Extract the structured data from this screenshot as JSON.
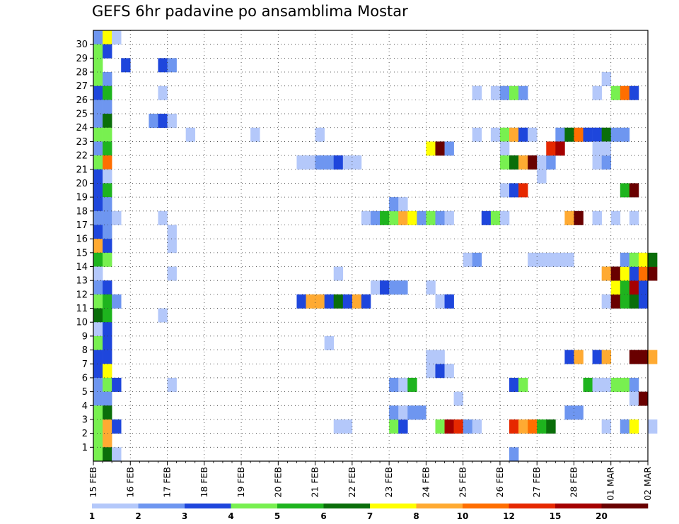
{
  "chart_data": {
    "type": "heatmap",
    "title": "GEFS 6hr padavine po ansamblima Mostar",
    "y_ticks": [
      "1",
      "2",
      "3",
      "4",
      "5",
      "6",
      "7",
      "8",
      "9",
      "10",
      "11",
      "12",
      "13",
      "14",
      "15",
      "16",
      "17",
      "18",
      "19",
      "20",
      "21",
      "22",
      "23",
      "24",
      "25",
      "26",
      "27",
      "28",
      "29",
      "30"
    ],
    "x_ticks": [
      "15 FEB",
      "16 FEB",
      "17 FEB",
      "18 FEB",
      "19 FEB",
      "20 FEB",
      "21 FEB",
      "22 FEB",
      "23 FEB",
      "24 FEB",
      "25 FEB",
      "26 FEB",
      "27 FEB",
      "28 FEB",
      "01 MAR",
      "02 MAR"
    ],
    "x_unit": "6-hour steps from 15 FEB 00 UTC",
    "y_unit": "ensemble member",
    "colorbar": {
      "labels": [
        "1",
        "2",
        "3",
        "4",
        "5",
        "6",
        "7",
        "8",
        "10",
        "12",
        "15",
        "20"
      ],
      "colors": [
        "#b4c8fa",
        "#6e96f0",
        "#1e46dc",
        "#78f050",
        "#1eb41e",
        "#0a6e0a",
        "#ffff00",
        "#ffaa32",
        "#ff6e00",
        "#e62800",
        "#a50000",
        "#690000"
      ]
    },
    "color_levels": [
      "1-2",
      "2-3",
      "3-4",
      "4-5",
      "5-6",
      "6-7",
      "7-8",
      "8-10",
      "10-12",
      "12-15",
      "15-20",
      ">20"
    ],
    "cells": [
      [
        0,
        30,
        1
      ],
      [
        1,
        30,
        6
      ],
      [
        2,
        30,
        0
      ],
      [
        0,
        29,
        3
      ],
      [
        1,
        29,
        2
      ],
      [
        0,
        28,
        3
      ],
      [
        3,
        28,
        2
      ],
      [
        0,
        27,
        3
      ],
      [
        1,
        27,
        1
      ],
      [
        0,
        26,
        2
      ],
      [
        1,
        26,
        4
      ],
      [
        0,
        25,
        1
      ],
      [
        1,
        25,
        1
      ],
      [
        0,
        24,
        1
      ],
      [
        1,
        24,
        5
      ],
      [
        0,
        23,
        3
      ],
      [
        1,
        23,
        3
      ],
      [
        0,
        22,
        1
      ],
      [
        1,
        22,
        4
      ],
      [
        0,
        21,
        3
      ],
      [
        1,
        21,
        8
      ],
      [
        0,
        20,
        2
      ],
      [
        1,
        20,
        0
      ],
      [
        0,
        19,
        2
      ],
      [
        1,
        19,
        4
      ],
      [
        0,
        18,
        2
      ],
      [
        1,
        18,
        1
      ],
      [
        0,
        17,
        1
      ],
      [
        1,
        17,
        1
      ],
      [
        2,
        17,
        0
      ],
      [
        0,
        16,
        2
      ],
      [
        1,
        16,
        1
      ],
      [
        0,
        15,
        7
      ],
      [
        1,
        15,
        2
      ],
      [
        0,
        14,
        4
      ],
      [
        1,
        14,
        3
      ],
      [
        0,
        13,
        0
      ],
      [
        0,
        12,
        1
      ],
      [
        1,
        12,
        2
      ],
      [
        0,
        11,
        3
      ],
      [
        1,
        11,
        4
      ],
      [
        2,
        11,
        1
      ],
      [
        0,
        10,
        5
      ],
      [
        1,
        10,
        4
      ],
      [
        0,
        9,
        0
      ],
      [
        1,
        9,
        2
      ],
      [
        0,
        8,
        3
      ],
      [
        1,
        8,
        2
      ],
      [
        0,
        7,
        2
      ],
      [
        1,
        7,
        2
      ],
      [
        0,
        6,
        2
      ],
      [
        1,
        6,
        6
      ],
      [
        0,
        5,
        1
      ],
      [
        1,
        5,
        3
      ],
      [
        2,
        5,
        2
      ],
      [
        0,
        4,
        1
      ],
      [
        1,
        4,
        1
      ],
      [
        0,
        3,
        3
      ],
      [
        1,
        3,
        5
      ],
      [
        0,
        2,
        3
      ],
      [
        1,
        2,
        7
      ],
      [
        2,
        2,
        2
      ],
      [
        0,
        1,
        3
      ],
      [
        1,
        1,
        7
      ],
      [
        0,
        0,
        3
      ],
      [
        1,
        0,
        5
      ],
      [
        2,
        0,
        0
      ],
      [
        7,
        28,
        2
      ],
      [
        8,
        28,
        1
      ],
      [
        7,
        26,
        0
      ],
      [
        6,
        24,
        1
      ],
      [
        7,
        24,
        2
      ],
      [
        8,
        24,
        0
      ],
      [
        10,
        23,
        0
      ],
      [
        17,
        23,
        0
      ],
      [
        24,
        23,
        0
      ],
      [
        7,
        17,
        0
      ],
      [
        8,
        16,
        0
      ],
      [
        8,
        15,
        0
      ],
      [
        8,
        13,
        0
      ],
      [
        26,
        13,
        0
      ],
      [
        7,
        10,
        0
      ],
      [
        8,
        5,
        0
      ],
      [
        22,
        11,
        2
      ],
      [
        23,
        11,
        7
      ],
      [
        24,
        11,
        7
      ],
      [
        25,
        11,
        2
      ],
      [
        26,
        11,
        5
      ],
      [
        27,
        11,
        2
      ],
      [
        28,
        11,
        7
      ],
      [
        29,
        11,
        2
      ],
      [
        22,
        21,
        0
      ],
      [
        23,
        21,
        0
      ],
      [
        24,
        21,
        1
      ],
      [
        25,
        21,
        1
      ],
      [
        26,
        21,
        2
      ],
      [
        27,
        21,
        0
      ],
      [
        28,
        21,
        0
      ],
      [
        25,
        8,
        0
      ],
      [
        26,
        2,
        0
      ],
      [
        27,
        2,
        0
      ],
      [
        29,
        17,
        0
      ],
      [
        30,
        17,
        1
      ],
      [
        31,
        17,
        4
      ],
      [
        32,
        17,
        3
      ],
      [
        33,
        17,
        7
      ],
      [
        34,
        17,
        6
      ],
      [
        35,
        17,
        1
      ],
      [
        36,
        17,
        3
      ],
      [
        37,
        17,
        1
      ],
      [
        38,
        17,
        0
      ],
      [
        30,
        12,
        0
      ],
      [
        31,
        12,
        2
      ],
      [
        32,
        12,
        1
      ],
      [
        33,
        12,
        1
      ],
      [
        32,
        2,
        3
      ],
      [
        33,
        2,
        2
      ],
      [
        32,
        3,
        1
      ],
      [
        33,
        3,
        0
      ],
      [
        34,
        3,
        1
      ],
      [
        35,
        3,
        1
      ],
      [
        32,
        5,
        1
      ],
      [
        33,
        5,
        0
      ],
      [
        34,
        5,
        4
      ],
      [
        36,
        6,
        0
      ],
      [
        37,
        6,
        2
      ],
      [
        38,
        6,
        0
      ],
      [
        36,
        7,
        0
      ],
      [
        37,
        7,
        0
      ],
      [
        32,
        18,
        1
      ],
      [
        33,
        18,
        0
      ],
      [
        36,
        22,
        6
      ],
      [
        37,
        22,
        11
      ],
      [
        38,
        22,
        1
      ],
      [
        37,
        11,
        0
      ],
      [
        38,
        11,
        2
      ],
      [
        36,
        12,
        0
      ],
      [
        39,
        4,
        0
      ],
      [
        37,
        2,
        3
      ],
      [
        38,
        2,
        10
      ],
      [
        39,
        2,
        9
      ],
      [
        40,
        2,
        1
      ],
      [
        41,
        2,
        0
      ],
      [
        40,
        14,
        0
      ],
      [
        41,
        14,
        1
      ],
      [
        41,
        23,
        0
      ],
      [
        41,
        26,
        0
      ],
      [
        41,
        26,
        0
      ],
      [
        43,
        26,
        0
      ],
      [
        44,
        26,
        1
      ],
      [
        45,
        26,
        3
      ],
      [
        46,
        26,
        1
      ],
      [
        43,
        23,
        0
      ],
      [
        44,
        23,
        3
      ],
      [
        45,
        23,
        7
      ],
      [
        46,
        23,
        2
      ],
      [
        47,
        23,
        0
      ],
      [
        44,
        22,
        0
      ],
      [
        44,
        21,
        3
      ],
      [
        45,
        21,
        5
      ],
      [
        46,
        21,
        7
      ],
      [
        47,
        21,
        11
      ],
      [
        48,
        21,
        0
      ],
      [
        49,
        21,
        1
      ],
      [
        48,
        20,
        0
      ],
      [
        44,
        19,
        0
      ],
      [
        45,
        19,
        2
      ],
      [
        46,
        19,
        9
      ],
      [
        42,
        17,
        2
      ],
      [
        43,
        17,
        3
      ],
      [
        44,
        17,
        0
      ],
      [
        45,
        5,
        2
      ],
      [
        46,
        5,
        3
      ],
      [
        45,
        2,
        9
      ],
      [
        46,
        2,
        7
      ],
      [
        47,
        2,
        8
      ],
      [
        48,
        2,
        4
      ],
      [
        49,
        2,
        5
      ],
      [
        45,
        0,
        1
      ],
      [
        47,
        14,
        0
      ],
      [
        48,
        14,
        0
      ],
      [
        49,
        14,
        0
      ],
      [
        50,
        14,
        0
      ],
      [
        51,
        14,
        0
      ],
      [
        50,
        23,
        1
      ],
      [
        51,
        23,
        5
      ],
      [
        52,
        23,
        8
      ],
      [
        53,
        23,
        2
      ],
      [
        54,
        23,
        2
      ],
      [
        55,
        23,
        5
      ],
      [
        56,
        23,
        1
      ],
      [
        49,
        22,
        9
      ],
      [
        50,
        22,
        10
      ],
      [
        51,
        17,
        7
      ],
      [
        52,
        17,
        11
      ],
      [
        51,
        7,
        2
      ],
      [
        52,
        7,
        7
      ],
      [
        51,
        3,
        1
      ],
      [
        52,
        3,
        1
      ],
      [
        53,
        5,
        4
      ],
      [
        54,
        5,
        0
      ],
      [
        55,
        5,
        0
      ],
      [
        56,
        5,
        3
      ],
      [
        54,
        21,
        0
      ],
      [
        55,
        21,
        1
      ],
      [
        54,
        22,
        0
      ],
      [
        55,
        22,
        0
      ],
      [
        54,
        26,
        0
      ],
      [
        56,
        26,
        3
      ],
      [
        57,
        26,
        8
      ],
      [
        58,
        26,
        2
      ],
      [
        55,
        27,
        0
      ],
      [
        54,
        17,
        0
      ],
      [
        56,
        17,
        0
      ],
      [
        58,
        17,
        0
      ],
      [
        54,
        7,
        2
      ],
      [
        55,
        7,
        7
      ],
      [
        55,
        11,
        0
      ],
      [
        56,
        11,
        11
      ],
      [
        57,
        11,
        4
      ],
      [
        58,
        11,
        5
      ],
      [
        59,
        11,
        2
      ],
      [
        56,
        12,
        6
      ],
      [
        57,
        12,
        4
      ],
      [
        58,
        12,
        10
      ],
      [
        59,
        12,
        2
      ],
      [
        55,
        13,
        7
      ],
      [
        56,
        13,
        11
      ],
      [
        57,
        13,
        6
      ],
      [
        58,
        13,
        2
      ],
      [
        59,
        13,
        8
      ],
      [
        60,
        13,
        11
      ],
      [
        57,
        14,
        1
      ],
      [
        58,
        14,
        3
      ],
      [
        59,
        14,
        6
      ],
      [
        60,
        14,
        5
      ],
      [
        57,
        19,
        4
      ],
      [
        58,
        19,
        11
      ],
      [
        57,
        5,
        3
      ],
      [
        58,
        5,
        1
      ],
      [
        58,
        4,
        0
      ],
      [
        59,
        4,
        11
      ],
      [
        57,
        2,
        1
      ],
      [
        58,
        2,
        6
      ],
      [
        60,
        2,
        0
      ],
      [
        58,
        7,
        11
      ],
      [
        59,
        7,
        11
      ],
      [
        60,
        7,
        7
      ],
      [
        55,
        2,
        0
      ],
      [
        57,
        23,
        1
      ]
    ]
  }
}
